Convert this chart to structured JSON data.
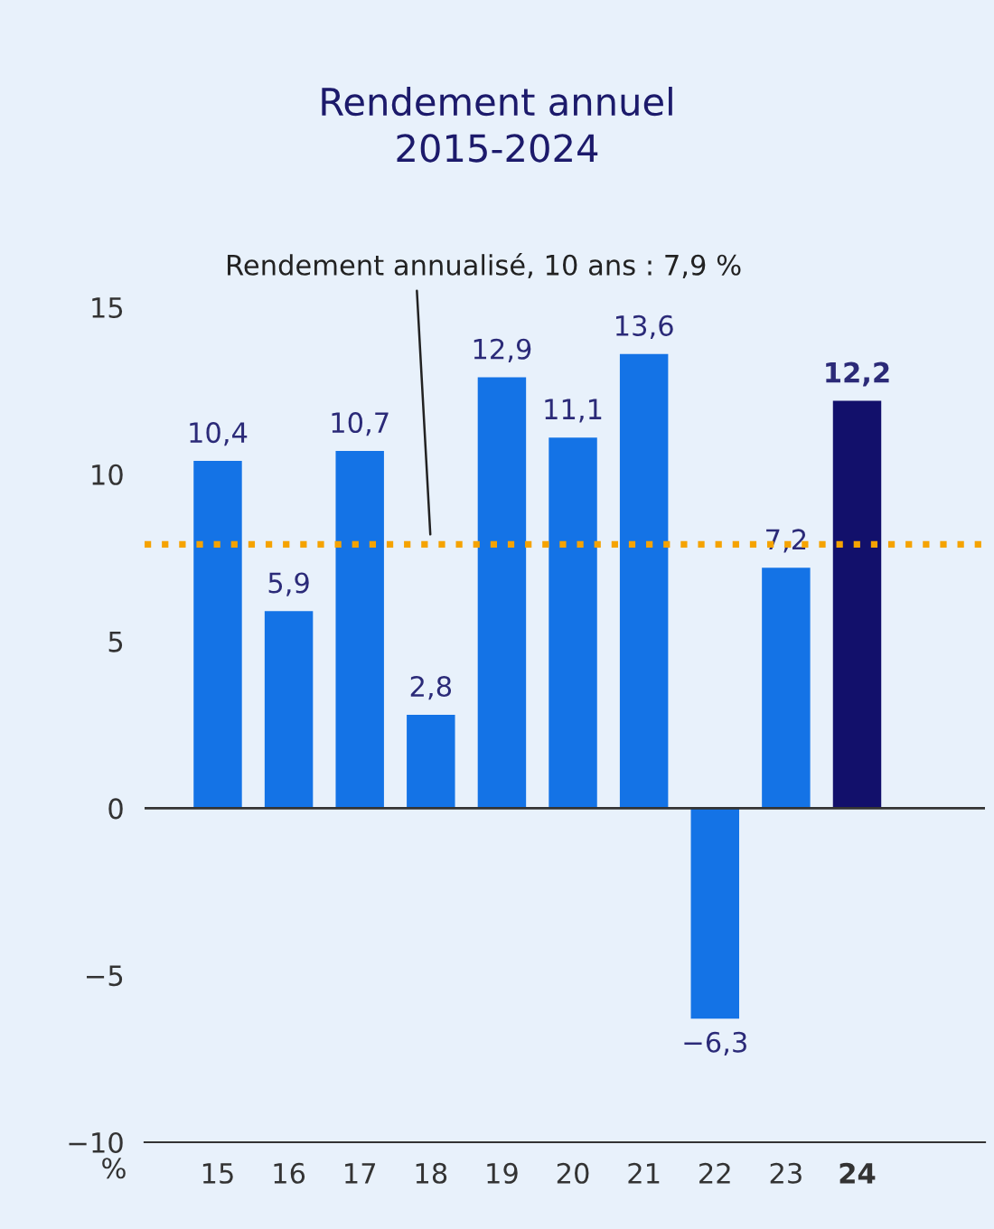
{
  "chart_data": {
    "type": "bar",
    "title": "Rendement annuel\n2015-2024",
    "ylabel": "%",
    "categories": [
      "15",
      "16",
      "17",
      "18",
      "19",
      "20",
      "21",
      "22",
      "23",
      "24"
    ],
    "values": [
      10.4,
      5.9,
      10.7,
      2.8,
      12.9,
      11.1,
      13.6,
      -6.3,
      7.2,
      12.2
    ],
    "value_labels": [
      "10,4",
      "5,9",
      "10,7",
      "2,8",
      "12,9",
      "11,1",
      "13,6",
      "−6,3",
      "7,2",
      "12,2"
    ],
    "colors": [
      "#1473e6",
      "#1473e6",
      "#1473e6",
      "#1473e6",
      "#1473e6",
      "#1473e6",
      "#1473e6",
      "#1473e6",
      "#1473e6",
      "#12106b"
    ],
    "ylim": [
      -10,
      15
    ],
    "yticks": [
      {
        "value": -10,
        "label": "−10"
      },
      {
        "value": -5,
        "label": "−5"
      },
      0,
      5,
      10,
      15
    ],
    "ref_lines": [
      {
        "axis": "y",
        "value": 7.9,
        "color": "#f5a300",
        "line_style": "dotted",
        "label": "Rendement annualisé, 10 ans : 7,9 %"
      },
      {
        "axis": "y",
        "value": 0,
        "color": "#333333",
        "line_style": "solid"
      }
    ],
    "grid": false
  }
}
